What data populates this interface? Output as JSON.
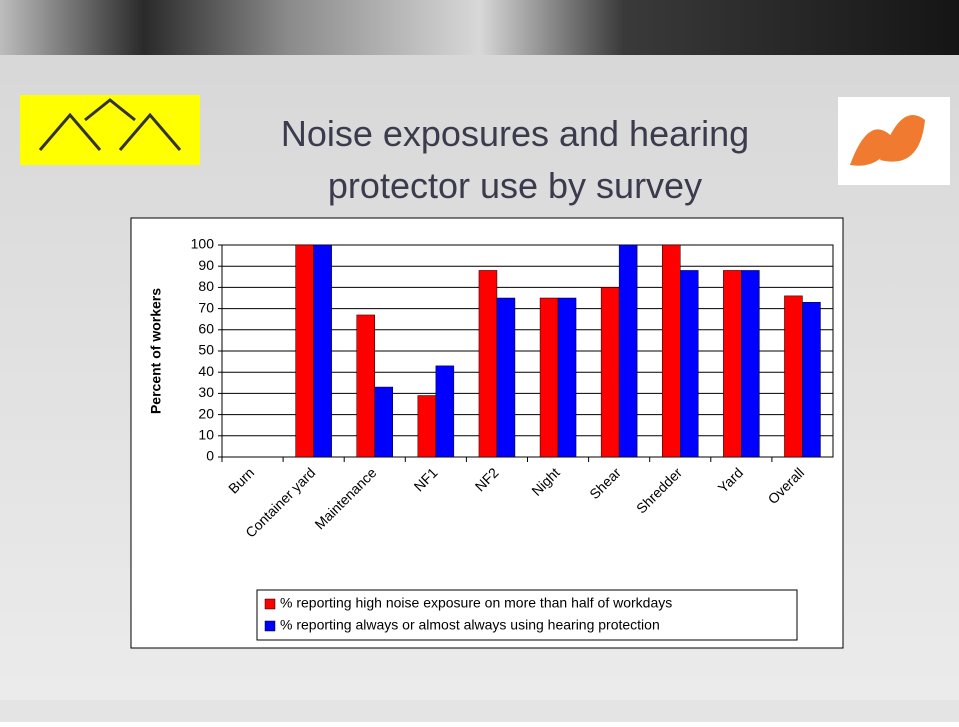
{
  "chart_data": {
    "type": "bar",
    "title": "Noise exposures and hearing protector use by survey",
    "y_label": "Percent of workers",
    "categories": [
      "Burn",
      "Container yard",
      "Maintenance",
      "NF1",
      "NF2",
      "Night",
      "Shear",
      "Shredder",
      "Yard",
      "Overall"
    ],
    "series": [
      {
        "name": "% reporting high noise exposure on more than half of workdays",
        "color": "#ff0000",
        "values": [
          0,
          100,
          67,
          29,
          88,
          75,
          80,
          100,
          88,
          76
        ]
      },
      {
        "name": "% reporting always or almost always using hearing protection",
        "color": "#0000ff",
        "values": [
          0,
          100,
          33,
          43,
          75,
          75,
          100,
          88,
          88,
          73
        ]
      }
    ],
    "ylim": [
      0,
      100
    ],
    "yticks": [
      0,
      10,
      20,
      30,
      40,
      50,
      60,
      70,
      80,
      90,
      100
    ],
    "grid": true
  }
}
